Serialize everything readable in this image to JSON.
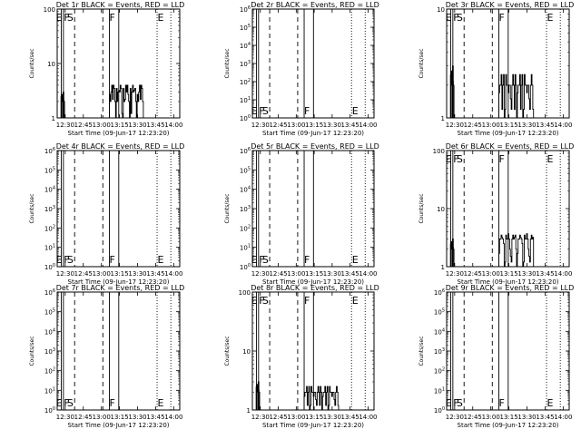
{
  "xtick_labels": [
    "12:30",
    "12:45",
    "13:00",
    "13:15",
    "13:30",
    "13:45",
    "14:00"
  ],
  "xlabel": "Start Time (09-Jun-17 12:23:20)",
  "ylabel": "Counts/sec",
  "marker_labels": {
    "E": "E",
    "F": "F",
    "S": "S"
  },
  "x_axis": {
    "start_time": "12:23:20",
    "range_minutes_from_12_00": [
      23.33,
      60.0
    ]
  },
  "chart_data": [
    {
      "type": "line",
      "title": "Det 1r BLACK = Events, RED = LLD",
      "yscale": "log",
      "ylim": [
        1,
        100
      ],
      "yticks": [
        {
          "v": 1,
          "label": "1"
        },
        {
          "v": 10,
          "label": "10"
        },
        {
          "v": 100,
          "label": "100"
        }
      ],
      "markers": [
        {
          "t": 12.5,
          "label": "E",
          "lx": 12.3
        },
        {
          "t": 12.7,
          "label": "F"
        },
        {
          "t": 12.7,
          "label": "S",
          "lx": 13.5
        },
        {
          "t": 14.0,
          "label": "F",
          "lx": 14.9
        },
        {
          "t": 14.8,
          "label": "E"
        }
      ],
      "label_y": 28,
      "series": [
        {
          "segments": [
            [
              12.5,
              2.7
            ],
            [
              12.55,
              2
            ],
            [
              12.6,
              3
            ],
            [
              12.66,
              2
            ]
          ],
          "extra": [
            [
              13.66,
              3
            ],
            [
              13.7,
              2
            ],
            [
              13.75,
              3
            ],
            [
              13.9,
              3.5
            ],
            [
              14.0,
              3
            ],
            [
              14.1,
              4
            ],
            [
              14.2,
              3
            ],
            [
              14.3,
              2
            ],
            [
              14.4,
              1
            ]
          ]
        }
      ]
    },
    {
      "type": "line",
      "title": "Det 2r BLACK = Events, RED = LLD",
      "yscale": "log",
      "ylim": [
        1,
        1000000
      ],
      "yticks": [
        {
          "v": 1,
          "label": "10^0"
        },
        {
          "v": 10,
          "label": "10^1"
        },
        {
          "v": 100,
          "label": "10^2"
        },
        {
          "v": 1000,
          "label": "10^3"
        },
        {
          "v": 10000,
          "label": "10^4"
        },
        {
          "v": 100000,
          "label": "10^5"
        },
        {
          "v": 1000000,
          "label": "10^6"
        }
      ],
      "markers": [
        {
          "t": 12.5,
          "label": "E",
          "lx": 12.3
        },
        {
          "t": 12.7,
          "label": "F"
        },
        {
          "t": 12.7,
          "label": "S",
          "lx": 13.5
        },
        {
          "t": 14.0,
          "label": "F",
          "lx": 14.9
        },
        {
          "t": 14.8,
          "label": "E"
        }
      ],
      "label_y": 124,
      "series": []
    },
    {
      "type": "line",
      "title": "Det 3r BLACK = Events, RED = LLD",
      "yscale": "log",
      "ylim": [
        1,
        10
      ],
      "yticks": [
        {
          "v": 1,
          "label": "1"
        },
        {
          "v": 10,
          "label": "10"
        }
      ],
      "markers": [
        {
          "t": 12.5,
          "label": "E",
          "lx": 12.3
        },
        {
          "t": 12.7,
          "label": "F"
        },
        {
          "t": 12.7,
          "label": "S",
          "lx": 13.5
        },
        {
          "t": 14.0,
          "label": "F",
          "lx": 14.9
        },
        {
          "t": 14.8,
          "label": "E"
        }
      ],
      "label_y": 28,
      "series": [
        {
          "segments": [
            [
              12.5,
              2
            ],
            [
              12.55,
              1
            ],
            [
              12.6,
              2
            ]
          ],
          "extra": [
            [
              13.66,
              2
            ],
            [
              13.75,
              2
            ],
            [
              13.9,
              2
            ],
            [
              14.0,
              2
            ],
            [
              14.1,
              2
            ],
            [
              14.2,
              2
            ],
            [
              14.3,
              2
            ],
            [
              14.4,
              1
            ]
          ]
        }
      ]
    },
    {
      "type": "line",
      "title": "Det 4r BLACK = Events, RED = LLD",
      "yscale": "log",
      "ylim": [
        1,
        1000000
      ],
      "yticks": [
        {
          "v": 1,
          "label": "10^0"
        },
        {
          "v": 10,
          "label": "10^1"
        },
        {
          "v": 100,
          "label": "10^2"
        },
        {
          "v": 1000,
          "label": "10^3"
        },
        {
          "v": 10000,
          "label": "10^4"
        },
        {
          "v": 100000,
          "label": "10^5"
        },
        {
          "v": 1000000,
          "label": "10^6"
        }
      ],
      "markers": [
        {
          "t": 12.5,
          "label": "E",
          "lx": 12.3
        },
        {
          "t": 12.7,
          "label": "F"
        },
        {
          "t": 12.7,
          "label": "S",
          "lx": 13.5
        },
        {
          "t": 14.0,
          "label": "F",
          "lx": 14.9
        },
        {
          "t": 14.8,
          "label": "E"
        }
      ],
      "label_y": 283,
      "series": []
    },
    {
      "type": "line",
      "title": "Det 5r BLACK = Events, RED = LLD",
      "yscale": "log",
      "ylim": [
        1,
        1000000
      ],
      "yticks": [
        {
          "v": 1,
          "label": "10^0"
        },
        {
          "v": 10,
          "label": "10^1"
        },
        {
          "v": 100,
          "label": "10^2"
        },
        {
          "v": 1000,
          "label": "10^3"
        },
        {
          "v": 10000,
          "label": "10^4"
        },
        {
          "v": 100000,
          "label": "10^5"
        },
        {
          "v": 1000000,
          "label": "10^6"
        }
      ],
      "markers": [
        {
          "t": 12.5,
          "label": "E",
          "lx": 12.3
        },
        {
          "t": 12.7,
          "label": "F"
        },
        {
          "t": 12.7,
          "label": "S",
          "lx": 13.5
        },
        {
          "t": 14.0,
          "label": "F",
          "lx": 14.9
        },
        {
          "t": 14.8,
          "label": "E"
        }
      ],
      "label_y": 283,
      "series": []
    },
    {
      "type": "line",
      "title": "Det 6r BLACK = Events, RED = LLD",
      "yscale": "log",
      "ylim": [
        1,
        100
      ],
      "yticks": [
        {
          "v": 1,
          "label": "1"
        },
        {
          "v": 10,
          "label": "10"
        },
        {
          "v": 100,
          "label": "100"
        }
      ],
      "markers": [
        {
          "t": 12.5,
          "label": "E",
          "lx": 12.3
        },
        {
          "t": 12.7,
          "label": "F"
        },
        {
          "t": 12.7,
          "label": "S",
          "lx": 13.5
        },
        {
          "t": 14.0,
          "label": "F",
          "lx": 14.9
        },
        {
          "t": 14.8,
          "label": "E"
        }
      ],
      "label_y": 183,
      "series": [
        {
          "segments": [
            [
              12.5,
              2
            ],
            [
              12.55,
              3
            ],
            [
              12.6,
              2
            ]
          ],
          "extra": [
            [
              13.66,
              2
            ],
            [
              13.75,
              3
            ],
            [
              13.9,
              3
            ],
            [
              14.0,
              3
            ],
            [
              14.1,
              4
            ],
            [
              14.2,
              3
            ],
            [
              14.3,
              2
            ],
            [
              14.4,
              1
            ]
          ]
        }
      ]
    },
    {
      "type": "line",
      "title": "Det 7r BLACK = Events, RED = LLD",
      "yscale": "log",
      "ylim": [
        1,
        1000000
      ],
      "yticks": [
        {
          "v": 1,
          "label": "10^0"
        },
        {
          "v": 10,
          "label": "10^1"
        },
        {
          "v": 100,
          "label": "10^2"
        },
        {
          "v": 1000,
          "label": "10^3"
        },
        {
          "v": 10000,
          "label": "10^4"
        },
        {
          "v": 100000,
          "label": "10^5"
        },
        {
          "v": 1000000,
          "label": "10^6"
        }
      ],
      "markers": [
        {
          "t": 12.5,
          "label": "E",
          "lx": 12.3
        },
        {
          "t": 12.7,
          "label": "F"
        },
        {
          "t": 12.7,
          "label": "S",
          "lx": 13.5
        },
        {
          "t": 14.0,
          "label": "F",
          "lx": 14.9
        },
        {
          "t": 14.8,
          "label": "E"
        }
      ],
      "label_y": 438,
      "series": []
    },
    {
      "type": "line",
      "title": "Det 8r BLACK = Events, RED = LLD",
      "yscale": "log",
      "ylim": [
        1,
        100
      ],
      "yticks": [
        {
          "v": 1,
          "label": "1"
        },
        {
          "v": 10,
          "label": "10"
        },
        {
          "v": 100,
          "label": "100"
        }
      ],
      "markers": [
        {
          "t": 12.5,
          "label": "E",
          "lx": 12.3
        },
        {
          "t": 12.7,
          "label": "F"
        },
        {
          "t": 12.7,
          "label": "S",
          "lx": 13.5
        },
        {
          "t": 14.0,
          "label": "F",
          "lx": 14.9
        },
        {
          "t": 14.8,
          "label": "E"
        }
      ],
      "label_y": 338,
      "series": [
        {
          "segments": [
            [
              12.5,
              2
            ],
            [
              12.55,
              1.4
            ],
            [
              12.6,
              2
            ]
          ],
          "extra": [
            [
              13.66,
              2
            ],
            [
              13.75,
              2
            ],
            [
              13.9,
              2
            ],
            [
              14.0,
              2
            ],
            [
              14.1,
              2
            ],
            [
              14.2,
              2
            ],
            [
              14.3,
              2
            ],
            [
              14.4,
              1
            ]
          ]
        }
      ]
    },
    {
      "type": "line",
      "title": "Det 9r BLACK = Events, RED = LLD",
      "yscale": "log",
      "ylim": [
        1,
        1000000
      ],
      "yticks": [
        {
          "v": 1,
          "label": "10^0"
        },
        {
          "v": 10,
          "label": "10^1"
        },
        {
          "v": 100,
          "label": "10^2"
        },
        {
          "v": 1000,
          "label": "10^3"
        },
        {
          "v": 10000,
          "label": "10^4"
        },
        {
          "v": 100000,
          "label": "10^5"
        },
        {
          "v": 1000000,
          "label": "10^6"
        }
      ],
      "markers": [
        {
          "t": 12.5,
          "label": "E",
          "lx": 12.3
        },
        {
          "t": 12.7,
          "label": "F"
        },
        {
          "t": 12.7,
          "label": "S",
          "lx": 13.5
        },
        {
          "t": 14.0,
          "label": "F",
          "lx": 14.9
        },
        {
          "t": 14.8,
          "label": "E"
        }
      ],
      "label_y": 438,
      "series": []
    }
  ]
}
